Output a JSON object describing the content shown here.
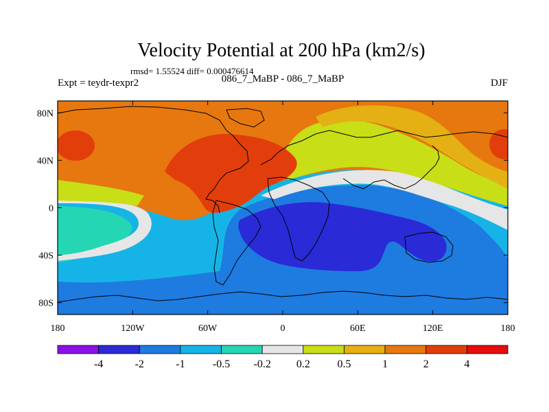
{
  "chart_data": {
    "type": "heatmap",
    "title": "Velocity Potential at 200 hPa (km2/s)",
    "stats": "rmsd= 1.55524 diff= 0.000476614",
    "left_label": "Expt = teydr-texpr2",
    "center_label": "086_7_MaBP - 086_7_MaBP",
    "right_label": "DJF",
    "x_ticks": [
      "180",
      "120W",
      "60W",
      "0",
      "60E",
      "120E",
      "180"
    ],
    "x_tick_values": [
      -180,
      -120,
      -60,
      0,
      60,
      120,
      180
    ],
    "y_ticks": [
      "80N",
      "40N",
      "0",
      "40S",
      "80S"
    ],
    "y_tick_values": [
      80,
      40,
      0,
      -40,
      -80
    ],
    "xlim": [
      -180,
      180
    ],
    "ylim": [
      -90,
      90
    ],
    "levels": [
      "-4",
      "-2",
      "-1",
      "-0.5",
      "-0.2",
      "0.2",
      "0.5",
      "1",
      "2",
      "4"
    ],
    "colors": [
      "#8a12e6",
      "#2a2ad6",
      "#1e7be0",
      "#16b4e6",
      "#25d6b4",
      "#e6e6e6",
      "#c8de17",
      "#e4b013",
      "#e6780f",
      "#e23e0c",
      "#e60d0d"
    ]
  }
}
